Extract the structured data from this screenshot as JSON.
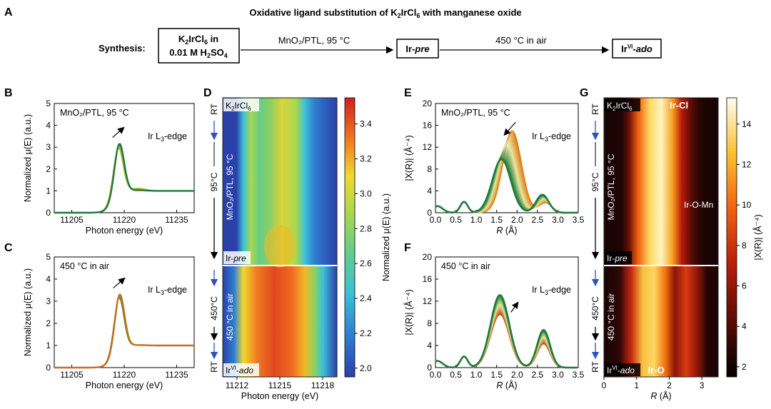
{
  "panel_letters": {
    "a": "A",
    "b": "B",
    "c": "C",
    "d": "D",
    "e": "E",
    "f": "F",
    "g": "G"
  },
  "scheme": {
    "title_pre": "Oxidative ligand substitution of K",
    "title_sub1": "2",
    "title_mid": "IrCl",
    "title_sub2": "6",
    "title_post": " with manganese oxide",
    "synthesis_label": "Synthesis:",
    "start_line1_pre": "K",
    "start_line1_sub1": "2",
    "start_line1_mid": "IrCl",
    "start_line1_sub2": "6",
    "start_line1_post": " in",
    "start_line2_pre": "0.01 M H",
    "start_line2_sub1": "2",
    "start_line2_mid": "SO",
    "start_line2_sub2": "4",
    "step1": "MnO₂/PTL, 95 °C",
    "product1_pre": "Ir-",
    "product1_italic": "pre",
    "step2": "450 °C in air",
    "product2_pre": "Ir",
    "product2_sup": "VI",
    "product2_post": "-",
    "product2_italic": "ado"
  },
  "chart_data": [
    {
      "id": "B",
      "type": "line",
      "annotation": "MnO₂/PTL, 95 °C",
      "edge_label_pre": "Ir L",
      "edge_label_sub": "3",
      "edge_label_post": "-edge",
      "xlabel": "Photon energy (eV)",
      "ylabel": "Normalized μ(E) (a.u.)",
      "xlim": [
        11200,
        11240
      ],
      "ylim": [
        0,
        5
      ],
      "xticks": [
        11205,
        11220,
        11235
      ],
      "yticks": [
        0,
        1,
        2,
        3,
        4,
        5
      ],
      "series": [
        {
          "color": "#e07a10",
          "peak_x": 11218.3,
          "peak_y": 3.05,
          "post_bump": 0.12
        },
        {
          "color": "#c8c030",
          "peak_x": 11218.4,
          "peak_y": 3.1,
          "post_bump": 0.09
        },
        {
          "color": "#90c070",
          "peak_x": 11218.5,
          "peak_y": 3.15,
          "post_bump": 0.06
        },
        {
          "color": "#1e7a3a",
          "peak_x": 11218.6,
          "peak_y": 3.25,
          "post_bump": 0.03
        }
      ],
      "arrow": "up"
    },
    {
      "id": "C",
      "type": "line",
      "annotation": "450 °C in air",
      "edge_label_pre": "Ir L",
      "edge_label_sub": "3",
      "edge_label_post": "-edge",
      "xlabel": "Photon energy (eV)",
      "ylabel": "Normalized μ(E) (a.u.)",
      "xlim": [
        11200,
        11240
      ],
      "ylim": [
        0,
        5
      ],
      "xticks": [
        11205,
        11220,
        11235
      ],
      "yticks": [
        0,
        1,
        2,
        3,
        4,
        5
      ],
      "series": [
        {
          "color": "#1e7a3a",
          "peak_x": 11218.5,
          "peak_y": 3.25,
          "post_bump": 0.02
        },
        {
          "color": "#7aa040",
          "peak_x": 11218.6,
          "peak_y": 3.35,
          "post_bump": 0.02
        },
        {
          "color": "#c07020",
          "peak_x": 11218.7,
          "peak_y": 3.4,
          "post_bump": 0.02
        }
      ],
      "arrow": "up"
    },
    {
      "id": "D",
      "type": "heatmap",
      "xlabel": "Photon energy (eV)",
      "xlim": [
        11211,
        11219
      ],
      "xticks": [
        11212,
        11215,
        11218
      ],
      "colorbar_label": "Normalized μ(E) (a.u.)",
      "colorbar_range": [
        1.95,
        3.55
      ],
      "colorbar_ticks": [
        2.0,
        2.2,
        2.4,
        2.6,
        2.8,
        3.0,
        3.2,
        3.4
      ],
      "top_label_pre": "K",
      "top_label_sub1": "2",
      "top_label_mid": "IrCl",
      "top_label_sub2": "6",
      "upper_label": "MnO₂/PTL, 95 °C",
      "mid_label_pre": "Ir-",
      "mid_label_italic": "pre",
      "lower_label": "450 °C in air",
      "bottom_label_pre": "Ir",
      "bottom_label_sup": "VI",
      "bottom_label_post": "-",
      "bottom_label_italic": "ado",
      "side_labels": {
        "rt_top": "RT",
        "temp1": "95°C",
        "temp2": "450°C",
        "rt_bottom": "RT"
      }
    },
    {
      "id": "E",
      "type": "line",
      "annotation": "MnO₂/PTL, 95 °C",
      "edge_label_pre": "Ir L",
      "edge_label_sub": "3",
      "edge_label_post": "-edge",
      "xlabel_italic": "R",
      "xlabel_post": " (Å)",
      "ylabel": "|X(R)| (Å⁻⁴)",
      "xlim": [
        0,
        3.5
      ],
      "ylim": [
        0,
        20
      ],
      "xticks": [
        0.0,
        0.5,
        1.0,
        1.5,
        2.0,
        2.5,
        3.0,
        3.5
      ],
      "yticks": [
        0,
        4,
        8,
        12,
        16,
        20
      ],
      "first_series": {
        "color": "#e07a10",
        "peak1_r": 1.88,
        "peak1_h": 15.0,
        "peak2_r": 2.7,
        "peak2_h": 1.8
      },
      "last_series": {
        "color": "#1e7a3a",
        "peak1_r": 1.62,
        "peak1_h": 9.8,
        "peak2_r": 2.62,
        "peak2_h": 3.3
      },
      "arrow": "down-left"
    },
    {
      "id": "F",
      "type": "line",
      "annotation": "450 °C in air",
      "edge_label_pre": "Ir L",
      "edge_label_sub": "3",
      "edge_label_post": "-edge",
      "xlabel_italic": "R",
      "xlabel_post": " (Å)",
      "ylabel": "|X(R)| (Å⁻⁴)",
      "xlim": [
        0,
        3.5
      ],
      "ylim": [
        0,
        20
      ],
      "xticks": [
        0.0,
        0.5,
        1.0,
        1.5,
        2.0,
        2.5,
        3.0,
        3.5
      ],
      "yticks": [
        0,
        4,
        8,
        12,
        16,
        20
      ],
      "first_series": {
        "color": "#c05010",
        "peak1_r": 1.58,
        "peak1_h": 9.6,
        "peak2_r": 2.65,
        "peak2_h": 4.3
      },
      "last_series": {
        "color": "#1e7a3a",
        "peak1_r": 1.58,
        "peak1_h": 13.1,
        "peak2_r": 2.65,
        "peak2_h": 6.8
      },
      "arrow": "up-right"
    },
    {
      "id": "G",
      "type": "heatmap",
      "xlabel_italic": "R",
      "xlabel_post": " (Å)",
      "xlim": [
        0,
        3.5
      ],
      "xticks": [
        0,
        1,
        2,
        3
      ],
      "colorbar_label": "|X(R)| (Å⁻⁴)",
      "colorbar_range": [
        1.5,
        15.3
      ],
      "colorbar_ticks": [
        2,
        4,
        6,
        8,
        10,
        12,
        14
      ],
      "top_label_pre": "K",
      "top_label_sub1": "2",
      "top_label_mid": "IrCl",
      "top_label_sub2": "6",
      "top_bond": "Ir-Cl",
      "mid_bond": "Ir-O-Mn",
      "upper_label": "MnO₂/PTL, 95 °C",
      "mid_label_pre": "Ir-",
      "mid_label_italic": "pre",
      "lower_label": "450 °C in air",
      "bottom_label_pre": "Ir",
      "bottom_label_sup": "VI",
      "bottom_label_post": "-",
      "bottom_label_italic": "ado",
      "bottom_bond": "Ir-O",
      "side_labels": {
        "rt_top": "RT",
        "temp1": "95°C",
        "temp2": "450°C",
        "rt_bottom": "RT"
      }
    }
  ]
}
